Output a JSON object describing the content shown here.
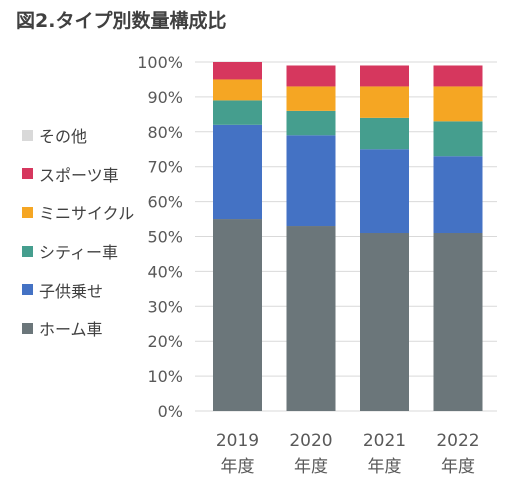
{
  "title": "図2.タイプ別数量構成比",
  "chart_data": {
    "type": "bar",
    "stacked": true,
    "title": "図2.タイプ別数量構成比",
    "categories": [
      "2019\n年度",
      "2020\n年度",
      "2021\n年度",
      "2022\n年度"
    ],
    "yticks": [
      "0%",
      "10%",
      "20%",
      "30%",
      "40%",
      "50%",
      "60%",
      "70%",
      "80%",
      "90%",
      "100%"
    ],
    "ylim": [
      0,
      100
    ],
    "legend_position": "left",
    "series": [
      {
        "name": "ホーム車",
        "color": "#6B767A",
        "values": [
          55,
          53,
          51,
          51
        ]
      },
      {
        "name": "子供乗せ",
        "color": "#4472C4",
        "values": [
          27,
          26,
          24,
          22
        ]
      },
      {
        "name": "シティー車",
        "color": "#459E8E",
        "values": [
          7,
          7,
          9,
          10
        ]
      },
      {
        "name": "ミニサイクル",
        "color": "#F5A623",
        "values": [
          6,
          7,
          9,
          10
        ]
      },
      {
        "name": "スポーツ車",
        "color": "#D6375E",
        "values": [
          5,
          6,
          6,
          6
        ]
      },
      {
        "name": "その他",
        "color": "#D9D9D9",
        "values": [
          0,
          0,
          0,
          0
        ]
      }
    ],
    "legend_order": [
      "その他",
      "スポーツ車",
      "ミニサイクル",
      "シティー車",
      "子供乗せ",
      "ホーム車"
    ]
  }
}
